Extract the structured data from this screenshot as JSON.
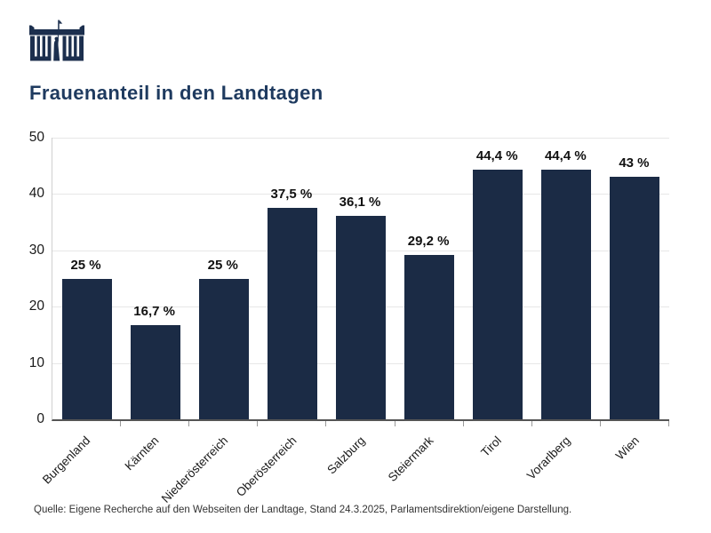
{
  "header": {
    "logo": "austrian-parliament-logo",
    "title": "Frauenanteil in den Landtagen"
  },
  "chart_data": {
    "type": "bar",
    "title": "Frauenanteil in den Landtagen",
    "categories": [
      "Burgenland",
      "Kärnten",
      "Niederösterreich",
      "Oberösterreich",
      "Salzburg",
      "Steiermark",
      "Tirol",
      "Vorarlberg",
      "Wien"
    ],
    "values": [
      25,
      16.7,
      25,
      37.5,
      36.1,
      29.2,
      44.4,
      44.4,
      43
    ],
    "value_labels": [
      "25 %",
      "16,7 %",
      "25 %",
      "37,5 %",
      "36,1 %",
      "29,2 %",
      "44,4 %",
      "44,4 %",
      "43 %"
    ],
    "xlabel": "",
    "ylabel": "",
    "ylim": [
      0,
      50
    ],
    "yticks": [
      0,
      10,
      20,
      30,
      40,
      50
    ],
    "grid": true,
    "legend": false,
    "bar_color": "#1b2b45"
  },
  "footer": {
    "source": "Quelle: Eigene Recherche auf den Webseiten der Landtage, Stand 24.3.2025, Parlamentsdirektion/eigene Darstellung."
  },
  "colors": {
    "bar": "#1b2b45",
    "title": "#1e3a5f",
    "logo": "#1c2f4e",
    "grid": "#e7e7e7",
    "axis_left": "#cfcfcf",
    "axis_bottom": "#555555",
    "tick": "#999999",
    "label_text": "#1a1a1a",
    "source_text": "#333333"
  }
}
